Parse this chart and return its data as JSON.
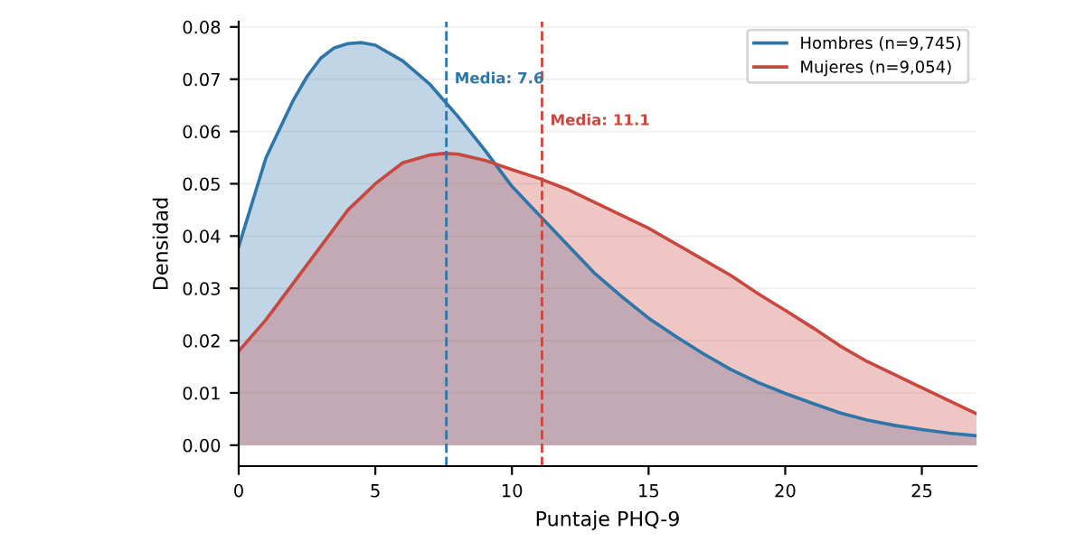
{
  "chart_data": {
    "type": "area",
    "xlabel": "Puntaje PHQ-9",
    "ylabel": "Densidad",
    "series": [
      {
        "name": "Hombres (n=9,745)",
        "color": "#2e75a8",
        "x": [
          0,
          1,
          2,
          2.5,
          3,
          3.5,
          4,
          4.5,
          5,
          6,
          7,
          8,
          9,
          10,
          11,
          12,
          13,
          14,
          15,
          16,
          17,
          18,
          19,
          20,
          21,
          22,
          23,
          24,
          25,
          26,
          27
        ],
        "values": [
          0.038,
          0.055,
          0.066,
          0.0705,
          0.074,
          0.076,
          0.0768,
          0.077,
          0.0765,
          0.0735,
          0.069,
          0.063,
          0.0565,
          0.0495,
          0.044,
          0.0385,
          0.033,
          0.0285,
          0.0243,
          0.0208,
          0.0175,
          0.0145,
          0.012,
          0.0099,
          0.008,
          0.0062,
          0.0048,
          0.0038,
          0.003,
          0.0023,
          0.0018
        ]
      },
      {
        "name": "Mujeres (n=9,054)",
        "color": "#c8473f",
        "x": [
          0,
          1,
          2,
          3,
          4,
          5,
          6,
          7,
          7.5,
          8,
          9,
          10,
          11,
          12,
          13,
          14,
          15,
          16,
          17,
          18,
          19,
          20,
          21,
          22,
          23,
          24,
          25,
          26,
          27
        ],
        "values": [
          0.018,
          0.024,
          0.031,
          0.038,
          0.045,
          0.05,
          0.054,
          0.0555,
          0.0558,
          0.0557,
          0.0545,
          0.0527,
          0.051,
          0.049,
          0.0465,
          0.044,
          0.0415,
          0.0385,
          0.0355,
          0.0325,
          0.029,
          0.0258,
          0.0225,
          0.019,
          0.016,
          0.0135,
          0.011,
          0.0085,
          0.006
        ]
      }
    ],
    "ref_lines": [
      {
        "axis": "x",
        "value": 7.6,
        "label": "Media: 7.6",
        "color": "#2e75a8",
        "line_style": "dashed"
      },
      {
        "axis": "x",
        "value": 11.1,
        "label": "Media: 11.1",
        "color": "#c8473f",
        "line_style": "dashed"
      }
    ],
    "xlim": [
      0,
      27
    ],
    "xticks": [
      0,
      5,
      10,
      15,
      20,
      25
    ],
    "ylim": [
      -0.004,
      0.081
    ],
    "yticks": [
      {
        "value": 0,
        "label": "0.00"
      },
      0.01,
      0.02,
      0.03,
      0.04,
      0.05,
      0.06,
      0.07,
      0.08
    ],
    "grid": "y",
    "legend": "top right"
  }
}
